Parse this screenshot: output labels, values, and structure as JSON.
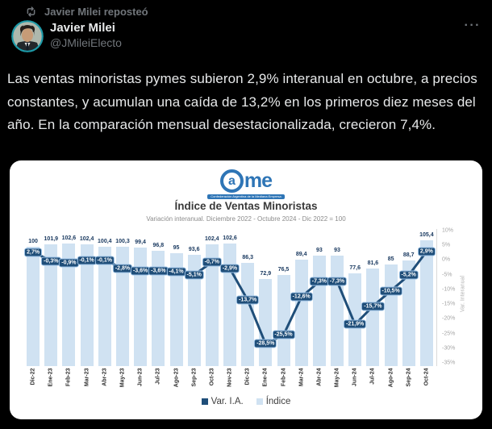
{
  "repost": {
    "label": "Javier Milei reposteó"
  },
  "user": {
    "name": "Javier Milei",
    "handle": "@JMileiElecto"
  },
  "icons": {
    "more": "···"
  },
  "tweet": {
    "text": "Las ventas minoristas pymes subieron 2,9% interanual en octubre, a precios constantes, y acumulan una caída de 13,2% en los primeros diez meses del año. En la comparación mensual desestacionalizada, crecieron 7,4%."
  },
  "chart": {
    "logo": {
      "a": "a",
      "me": "me",
      "tagline": "Confederación Argentina de la Mediana Empresa"
    },
    "colors": {
      "bar": "#d0e2f2",
      "line": "#1f4e79",
      "chip_border": "#9dc3e6",
      "accent_blue": "#2e75b6"
    }
  },
  "chart_data": {
    "type": "bar",
    "title": "Índice de Ventas Minoristas",
    "subtitle": "Variación interanual. Diciembre 2022 - Octubre 2024 - Dic 2022 = 100",
    "categories": [
      "Dic-22",
      "Ene-23",
      "Feb-23",
      "Mar-23",
      "Abr-23",
      "May-23",
      "Jun-23",
      "Jul-23",
      "Ago-23",
      "Sep-23",
      "Oct-23",
      "Nov-23",
      "Dic-23",
      "Ene-24",
      "Feb-24",
      "Mar-24",
      "Abr-24",
      "May-24",
      "Jun-24",
      "Jul-24",
      "Ago-24",
      "Sep-24",
      "Oct-24"
    ],
    "series": [
      {
        "name": "Índice",
        "type": "bar",
        "axis": "left",
        "values": [
          100,
          101.9,
          102.6,
          102.4,
          100.4,
          100.3,
          99.4,
          96.8,
          95,
          93.6,
          102.4,
          102.6,
          86.3,
          72.9,
          76.5,
          89.4,
          93,
          93,
          77.6,
          81.6,
          85,
          88.7,
          105.4
        ],
        "labels": [
          "100",
          "101,9",
          "102,6",
          "102,4",
          "100,4",
          "100,3",
          "99,4",
          "96,8",
          "95",
          "93,6",
          "102,4",
          "102,6",
          "86,3",
          "72,9",
          "76,5",
          "89,4",
          "93",
          "93",
          "77,6",
          "81,6",
          "85",
          "88,7",
          "105,4"
        ]
      },
      {
        "name": "Var. I.A.",
        "type": "line",
        "axis": "right",
        "values": [
          2.7,
          -0.3,
          -0.9,
          -0.1,
          -0.1,
          -2.8,
          -3.6,
          -3.6,
          -4.1,
          -5.1,
          -0.7,
          -2.9,
          -13.7,
          -28.5,
          -25.5,
          -12.6,
          -7.3,
          -7.3,
          -21.9,
          -15.7,
          -10.5,
          -5.2,
          2.9
        ],
        "labels": [
          "2,7%",
          "-0,3%",
          "-0,9%",
          "-0,1%",
          "-0,1%",
          "-2,8%",
          "-3,6%",
          "-3,6%",
          "-4,1%",
          "-5,1%",
          "-0,7%",
          "-2,9%",
          "-13,7%",
          "-28,5%",
          "-25,5%",
          "-12,6%",
          "-7,3%",
          "-7,3%",
          "-21,9%",
          "-15,7%",
          "-10,5%",
          "-5,2%",
          "2,9%"
        ]
      }
    ],
    "left_axis": {
      "range": [
        0,
        115
      ],
      "visible": false
    },
    "right_axis": {
      "label": "Var. Interanual",
      "range": [
        -35,
        10
      ],
      "ticks": [
        "10%",
        "5%",
        "0%",
        "-5%",
        "-10%",
        "-15%",
        "-20%",
        "-25%",
        "-30%",
        "-35%"
      ]
    },
    "legend_position": "bottom"
  }
}
